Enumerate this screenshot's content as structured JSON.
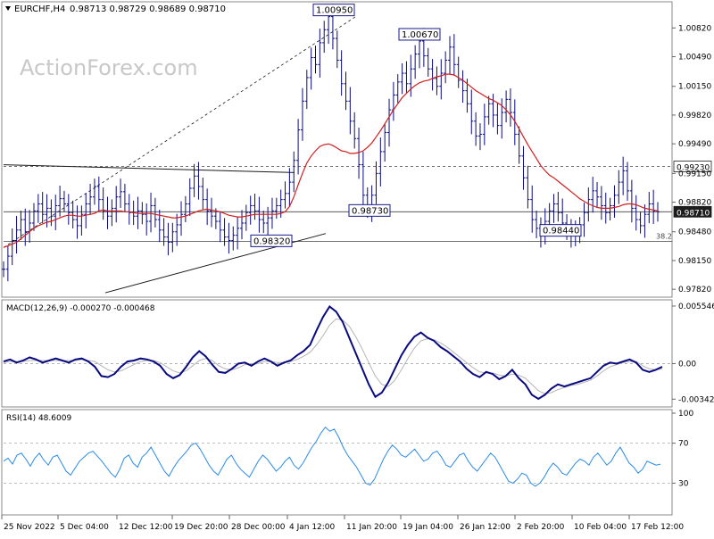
{
  "header": {
    "symbol": "EURCHF,H4",
    "ohlc": "0.98713 0.98729 0.98689 0.98710"
  },
  "watermark": "ActionForex.com",
  "colors": {
    "bars": "#0a0a80",
    "ema": "#d21e1e",
    "macd_main": "#0a0a80",
    "macd_signal": "#b4b4b4",
    "rsi": "#2a8ae6",
    "price_tag_bg": "#1c1c1c",
    "level_line": "#404040",
    "trendline": "#1a1a1a",
    "label_border": "#1a1a8a"
  },
  "chart_data": [
    {
      "type": "ohlc",
      "panel": "price",
      "title": "EURCHF,H4",
      "ylim": [
        0.9775,
        1.011
      ],
      "y_ticks": [
        "1.00820",
        "1.00490",
        "1.00150",
        "0.99820",
        "0.99490",
        "0.99150",
        "0.98820",
        "0.98480",
        "0.98150",
        "0.97820"
      ],
      "x_ticks": [
        "25 Nov 2022",
        "5 Dec 04:00",
        "12 Dec 12:00",
        "19 Dec 20:00",
        "28 Dec 00:00",
        "4 Jan 12:00",
        "11 Jan 20:00",
        "19 Jan 04:00",
        "26 Jan 12:00",
        "2 Feb 20:00",
        "10 Feb 04:00",
        "17 Feb 12:00"
      ],
      "close_series": [
        0.9805,
        0.982,
        0.9838,
        0.985,
        0.9862,
        0.9848,
        0.9858,
        0.9872,
        0.988,
        0.9868,
        0.9875,
        0.9866,
        0.9878,
        0.9886,
        0.988,
        0.987,
        0.9862,
        0.9855,
        0.9868,
        0.988,
        0.9888,
        0.99,
        0.9885,
        0.9872,
        0.9866,
        0.9875,
        0.9888,
        0.9894,
        0.988,
        0.987,
        0.9866,
        0.9872,
        0.9868,
        0.986,
        0.9878,
        0.9862,
        0.985,
        0.9842,
        0.9836,
        0.9848,
        0.9856,
        0.9868,
        0.988,
        0.9898,
        0.9912,
        0.99,
        0.9885,
        0.9872,
        0.9866,
        0.986,
        0.985,
        0.9842,
        0.9838,
        0.9844,
        0.9852,
        0.9858,
        0.987,
        0.9878,
        0.9872,
        0.9862,
        0.9858,
        0.9864,
        0.9872,
        0.9878,
        0.9885,
        0.9892,
        0.9905,
        0.993,
        0.9965,
        0.9998,
        1.0025,
        1.0048,
        1.004,
        1.0065,
        1.008,
        1.0095,
        1.007,
        1.0045,
        1.0018,
        0.9998,
        0.9975,
        0.9955,
        0.9925,
        0.989,
        0.9873,
        0.989,
        0.9915,
        0.994,
        0.9962,
        0.9988,
        1.0005,
        1.002,
        1.003,
        1.0018,
        1.0035,
        1.0052,
        1.0067,
        1.005,
        1.0035,
        1.0024,
        1.0015,
        1.003,
        1.0045,
        1.006,
        1.004,
        1.0022,
        1.001,
        0.9995,
        0.9975,
        0.9958,
        0.996,
        0.998,
        0.9995,
        0.9982,
        0.997,
        0.9985,
        1.0,
        0.9985,
        0.996,
        0.9935,
        0.991,
        0.9885,
        0.9862,
        0.9852,
        0.9846,
        0.986,
        0.9872,
        0.988,
        0.987,
        0.9858,
        0.985,
        0.9846,
        0.9844,
        0.9856,
        0.987,
        0.9885,
        0.9895,
        0.9888,
        0.9878,
        0.987,
        0.9878,
        0.989,
        0.9905,
        0.9918,
        0.9895,
        0.9875,
        0.9862,
        0.9855,
        0.9868,
        0.988,
        0.9872,
        0.9871
      ],
      "ema_series": [
        0.983,
        0.9832,
        0.9834,
        0.9836,
        0.984,
        0.9844,
        0.9848,
        0.9852,
        0.9855,
        0.9857,
        0.9859,
        0.986,
        0.9862,
        0.9864,
        0.9866,
        0.9867,
        0.9867,
        0.9866,
        0.9866,
        0.9867,
        0.9868,
        0.9869,
        0.9872,
        0.9873,
        0.9872,
        0.9872,
        0.9872,
        0.9872,
        0.9871,
        0.9871,
        0.987,
        0.9869,
        0.9869,
        0.9869,
        0.9869,
        0.9868,
        0.9867,
        0.9866,
        0.9865,
        0.9864,
        0.9864,
        0.9865,
        0.9866,
        0.9868,
        0.987,
        0.9872,
        0.9873,
        0.9874,
        0.9873,
        0.9872,
        0.9871,
        0.9869,
        0.9867,
        0.9866,
        0.9865,
        0.9865,
        0.9866,
        0.9867,
        0.9868,
        0.9868,
        0.9868,
        0.9868,
        0.9868,
        0.9868,
        0.9869,
        0.9871,
        0.9877,
        0.9888,
        0.9902,
        0.9915,
        0.9927,
        0.9935,
        0.9941,
        0.9946,
        0.9948,
        0.9949,
        0.9947,
        0.9944,
        0.9941,
        0.994,
        0.9938,
        0.9938,
        0.9939,
        0.9941,
        0.9945,
        0.995,
        0.9957,
        0.9964,
        0.9972,
        0.998,
        0.9988,
        0.9995,
        1.0002,
        1.0007,
        1.0012,
        1.0016,
        1.0019,
        1.0021,
        1.0022,
        1.0024,
        1.0026,
        1.0027,
        1.0029,
        1.0029,
        1.0028,
        1.0025,
        1.0022,
        1.0018,
        1.0014,
        1.001,
        1.0007,
        1.0004,
        1.0001,
        0.9999,
        0.9996,
        0.9993,
        0.9988,
        0.9982,
        0.9975,
        0.9966,
        0.9957,
        0.9948,
        0.994,
        0.9932,
        0.9924,
        0.9918,
        0.9913,
        0.991,
        0.9906,
        0.9902,
        0.9898,
        0.9894,
        0.989,
        0.9886,
        0.9883,
        0.988,
        0.9878,
        0.9876,
        0.9875,
        0.9875,
        0.9875,
        0.9876,
        0.9877,
        0.9879,
        0.988,
        0.988,
        0.9879,
        0.9877,
        0.9875,
        0.9874,
        0.9873,
        0.9872
      ],
      "annotations": [
        {
          "text": "1.00950",
          "price": 1.0095
        },
        {
          "text": "1.00670",
          "price": 1.0067
        },
        {
          "text": "0.98730",
          "price": 0.9873
        },
        {
          "text": "0.98320",
          "price": 0.9832
        },
        {
          "text": "0.98440",
          "price": 0.9844
        },
        {
          "text": "38.2",
          "price": 0.9837
        }
      ],
      "levels": [
        {
          "price": 0.9923,
          "label": "0.99230",
          "style": "dashed"
        },
        {
          "price": 0.9871,
          "label": "0.98710",
          "style": "solid"
        },
        {
          "price": 0.9837,
          "label": "",
          "style": "solid"
        }
      ]
    },
    {
      "type": "line",
      "panel": "macd",
      "title": "MACD(12,26,9) -0.000270 -0.000468",
      "ylim": [
        -0.004,
        0.0058
      ],
      "y_ticks": [
        "0.005546",
        "0.00",
        "-0.003423"
      ],
      "zero_line": 0.0,
      "series": [
        {
          "name": "main",
          "values": [
            0.0002,
            0.0004,
            0.0001,
            0.0003,
            0.0006,
            0.0004,
            0.0001,
            0.0003,
            0.0005,
            0.0003,
            0.0001,
            0.0004,
            0.0005,
            0.0002,
            -0.0003,
            -0.0012,
            -0.0013,
            -0.001,
            -0.0003,
            0.0002,
            0.0003,
            0.0005,
            0.0004,
            0.0002,
            -0.0002,
            -0.001,
            -0.0014,
            -0.0011,
            -0.0003,
            0.0006,
            0.0012,
            0.0007,
            -0.0001,
            -0.0008,
            -0.0009,
            -0.0005,
            0.0,
            0.0001,
            -0.0002,
            0.0002,
            0.0005,
            0.0002,
            -0.0002,
            0.0001,
            0.0003,
            0.0008,
            0.0012,
            0.0018,
            0.0032,
            0.0045,
            0.0055,
            0.005,
            0.004,
            0.0025,
            0.001,
            -0.0005,
            -0.002,
            -0.0032,
            -0.0028,
            -0.0018,
            -0.0005,
            0.0008,
            0.0018,
            0.0026,
            0.003,
            0.0025,
            0.0022,
            0.0016,
            0.0012,
            0.0007,
            0.0002,
            -0.0005,
            -0.001,
            -0.0013,
            -0.0008,
            -0.001,
            -0.0015,
            -0.0012,
            -0.0006,
            -0.0014,
            -0.002,
            -0.003,
            -0.0034,
            -0.003,
            -0.0024,
            -0.002,
            -0.0022,
            -0.002,
            -0.0018,
            -0.0016,
            -0.0014,
            -0.0008,
            -0.0002,
            0.0001,
            0.0,
            0.0002,
            0.0004,
            0.0001,
            -0.0006,
            -0.0008,
            -0.0006,
            -0.0003
          ]
        },
        {
          "name": "signal",
          "values": [
            0.0001,
            0.0002,
            0.0002,
            0.0002,
            0.0003,
            0.0003,
            0.0003,
            0.0003,
            0.0003,
            0.0003,
            0.0003,
            0.0003,
            0.0004,
            0.0003,
            0.0002,
            -0.0002,
            -0.0006,
            -0.0008,
            -0.0007,
            -0.0004,
            -0.0001,
            0.0002,
            0.0003,
            0.0003,
            0.0001,
            -0.0003,
            -0.0007,
            -0.0009,
            -0.0007,
            -0.0002,
            0.0003,
            0.0005,
            0.0003,
            -0.0002,
            -0.0005,
            -0.0006,
            -0.0004,
            -0.0001,
            -0.0001,
            0.0,
            0.0002,
            0.0002,
            0.0001,
            0.0001,
            0.0002,
            0.0004,
            0.0007,
            0.0011,
            0.0018,
            0.0027,
            0.0037,
            0.0043,
            0.0042,
            0.0036,
            0.0026,
            0.0014,
            0.0001,
            -0.0012,
            -0.002,
            -0.0022,
            -0.0016,
            -0.0006,
            0.0005,
            0.0015,
            0.0022,
            0.0024,
            0.0023,
            0.002,
            0.0016,
            0.0011,
            0.0006,
            0.0001,
            -0.0004,
            -0.0008,
            -0.0009,
            -0.0009,
            -0.0011,
            -0.0012,
            -0.001,
            -0.0011,
            -0.0014,
            -0.002,
            -0.0026,
            -0.0029,
            -0.0028,
            -0.0025,
            -0.0023,
            -0.0021,
            -0.002,
            -0.0018,
            -0.0016,
            -0.0012,
            -0.0007,
            -0.0003,
            -0.0001,
            0.0001,
            0.0002,
            0.0002,
            -0.0002,
            -0.0005,
            -0.0006,
            -0.0005
          ]
        }
      ]
    },
    {
      "type": "line",
      "panel": "rsi",
      "title": "RSI(14) 48.6009",
      "ylim": [
        0,
        100
      ],
      "y_ticks": [
        "100",
        "70",
        "30"
      ],
      "levels": [
        70,
        30
      ],
      "series": [
        {
          "name": "rsi",
          "values": [
            52,
            55,
            49,
            58,
            60,
            54,
            47,
            55,
            60,
            53,
            48,
            56,
            58,
            50,
            42,
            38,
            45,
            52,
            56,
            60,
            62,
            57,
            52,
            46,
            40,
            36,
            44,
            55,
            58,
            50,
            46,
            56,
            60,
            66,
            58,
            50,
            42,
            37,
            45,
            52,
            57,
            62,
            68,
            70,
            64,
            56,
            48,
            42,
            38,
            46,
            54,
            58,
            50,
            44,
            40,
            36,
            44,
            52,
            58,
            54,
            48,
            42,
            46,
            52,
            56,
            48,
            44,
            50,
            58,
            66,
            72,
            80,
            86,
            82,
            84,
            76,
            66,
            58,
            52,
            46,
            38,
            30,
            28,
            34,
            44,
            54,
            62,
            68,
            64,
            58,
            56,
            60,
            64,
            58,
            52,
            54,
            60,
            62,
            56,
            48,
            46,
            52,
            58,
            60,
            52,
            46,
            42,
            48,
            54,
            60,
            56,
            48,
            40,
            32,
            30,
            34,
            40,
            38,
            30,
            27,
            30,
            36,
            44,
            50,
            46,
            40,
            38,
            44,
            50,
            54,
            52,
            48,
            56,
            60,
            54,
            48,
            52,
            60,
            66,
            58,
            50,
            46,
            40,
            44,
            52,
            50,
            48,
            49
          ]
        }
      ]
    }
  ]
}
